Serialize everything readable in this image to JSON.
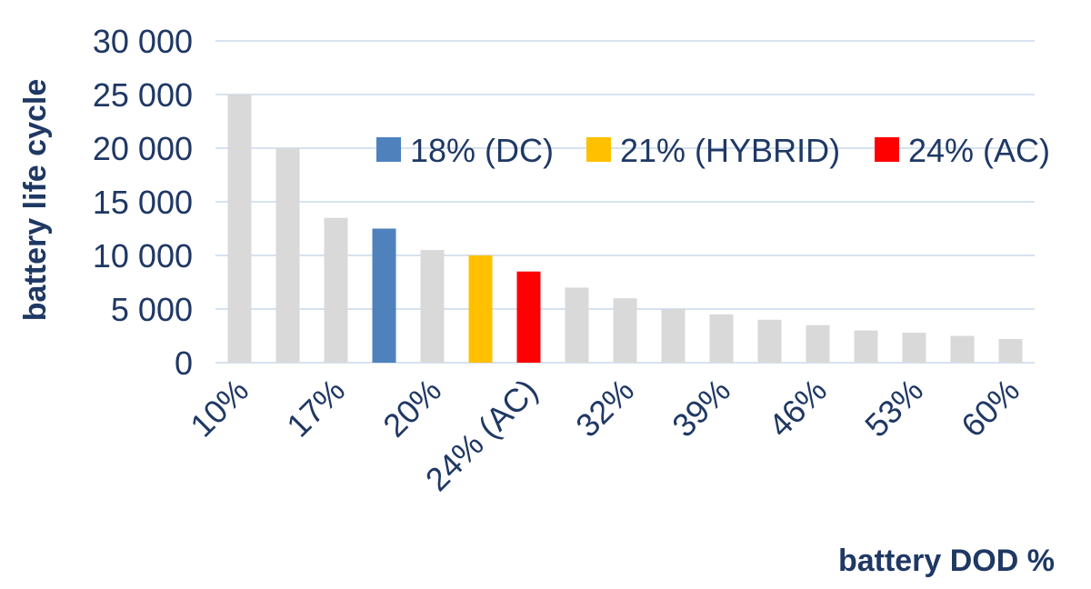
{
  "chart_data": {
    "type": "bar",
    "xlabel": "battery DOD %",
    "ylabel": "battery life cycle",
    "ylim": [
      0,
      30000
    ],
    "yticks": [
      "0",
      "5 000",
      "10 000",
      "15 000",
      "20 000",
      "25 000",
      "30 000"
    ],
    "ytick_values": [
      0,
      5000,
      10000,
      15000,
      20000,
      25000,
      30000
    ],
    "grid": true,
    "legend_position": "top-right",
    "categories": [
      "10%",
      "",
      "17%",
      "",
      "20%",
      "",
      "24% (AC)",
      "",
      "32%",
      "",
      "39%",
      "",
      "46%",
      "",
      "53%",
      "",
      "60%"
    ],
    "values": [
      25000,
      20000,
      13500,
      12500,
      10500,
      10000,
      8500,
      7000,
      6000,
      5000,
      4500,
      4000,
      3500,
      3000,
      2800,
      2500,
      2200
    ],
    "bar_colors": [
      "#d9d9d9",
      "#d9d9d9",
      "#d9d9d9",
      "#4f81bd",
      "#d9d9d9",
      "#ffc000",
      "#ff0000",
      "#d9d9d9",
      "#d9d9d9",
      "#d9d9d9",
      "#d9d9d9",
      "#d9d9d9",
      "#d9d9d9",
      "#d9d9d9",
      "#d9d9d9",
      "#d9d9d9",
      "#d9d9d9"
    ],
    "legend": [
      {
        "label": "18% (DC)",
        "color": "#4f81bd"
      },
      {
        "label": "21% (HYBRID)",
        "color": "#ffc000"
      },
      {
        "label": "24% (AC)",
        "color": "#ff0000"
      }
    ]
  }
}
